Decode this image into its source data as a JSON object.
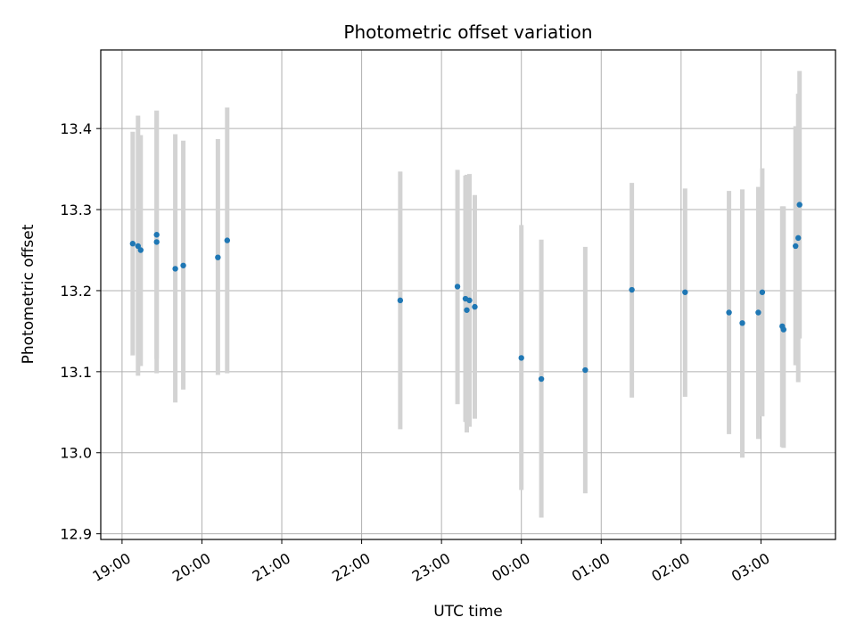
{
  "chart_data": {
    "type": "scatter",
    "title": "Photometric offset variation",
    "xlabel": "UTC time",
    "ylabel": "Photometric offset",
    "x_tick_labels": [
      "19:00",
      "20:00",
      "21:00",
      "22:00",
      "23:00",
      "00:00",
      "01:00",
      "02:00",
      "03:00"
    ],
    "y_ticks": [
      12.9,
      13.0,
      13.1,
      13.2,
      13.3,
      13.4
    ],
    "y_tick_labels": [
      "12.9",
      "13.0",
      "13.1",
      "13.2",
      "13.3",
      "13.4"
    ],
    "x_unit": "minutes after 19:00 UTC",
    "xlim": [
      -16,
      536
    ],
    "ylim": [
      12.893,
      13.497
    ],
    "grid": true,
    "colors": {
      "points": "#1f77b4",
      "errorbars": "#d3d3d3",
      "grid": "#b0b0b0"
    },
    "points": [
      {
        "x": 8,
        "y": 13.258,
        "ylow": 13.12,
        "yhigh": 13.396
      },
      {
        "x": 12,
        "y": 13.255,
        "ylow": 13.095,
        "yhigh": 13.416
      },
      {
        "x": 14,
        "y": 13.25,
        "ylow": 13.107,
        "yhigh": 13.392
      },
      {
        "x": 26,
        "y": 13.26,
        "ylow": 13.098,
        "yhigh": 13.422
      },
      {
        "x": 26,
        "y": 13.269,
        "ylow": 13.116,
        "yhigh": 13.422
      },
      {
        "x": 40,
        "y": 13.227,
        "ylow": 13.062,
        "yhigh": 13.393
      },
      {
        "x": 46,
        "y": 13.231,
        "ylow": 13.078,
        "yhigh": 13.385
      },
      {
        "x": 72,
        "y": 13.241,
        "ylow": 13.096,
        "yhigh": 13.387
      },
      {
        "x": 79,
        "y": 13.262,
        "ylow": 13.098,
        "yhigh": 13.426
      },
      {
        "x": 209,
        "y": 13.188,
        "ylow": 13.029,
        "yhigh": 13.347
      },
      {
        "x": 252,
        "y": 13.205,
        "ylow": 13.06,
        "yhigh": 13.349
      },
      {
        "x": 258,
        "y": 13.19,
        "ylow": 13.038,
        "yhigh": 13.342
      },
      {
        "x": 259,
        "y": 13.176,
        "ylow": 13.025,
        "yhigh": 13.343
      },
      {
        "x": 261,
        "y": 13.188,
        "ylow": 13.032,
        "yhigh": 13.344
      },
      {
        "x": 265,
        "y": 13.18,
        "ylow": 13.042,
        "yhigh": 13.318
      },
      {
        "x": 300,
        "y": 13.117,
        "ylow": 12.954,
        "yhigh": 13.281
      },
      {
        "x": 315,
        "y": 13.091,
        "ylow": 12.92,
        "yhigh": 13.263
      },
      {
        "x": 348,
        "y": 13.102,
        "ylow": 12.95,
        "yhigh": 13.254
      },
      {
        "x": 383,
        "y": 13.201,
        "ylow": 13.068,
        "yhigh": 13.333
      },
      {
        "x": 423,
        "y": 13.198,
        "ylow": 13.069,
        "yhigh": 13.326
      },
      {
        "x": 456,
        "y": 13.173,
        "ylow": 13.023,
        "yhigh": 13.323
      },
      {
        "x": 466,
        "y": 13.16,
        "ylow": 12.994,
        "yhigh": 13.325
      },
      {
        "x": 478,
        "y": 13.173,
        "ylow": 13.017,
        "yhigh": 13.328
      },
      {
        "x": 481,
        "y": 13.198,
        "ylow": 13.045,
        "yhigh": 13.351
      },
      {
        "x": 496,
        "y": 13.156,
        "ylow": 13.007,
        "yhigh": 13.304
      },
      {
        "x": 497,
        "y": 13.152,
        "ylow": 13.006,
        "yhigh": 13.304
      },
      {
        "x": 506,
        "y": 13.255,
        "ylow": 13.108,
        "yhigh": 13.403
      },
      {
        "x": 508,
        "y": 13.265,
        "ylow": 13.087,
        "yhigh": 13.443
      },
      {
        "x": 509,
        "y": 13.306,
        "ylow": 13.141,
        "yhigh": 13.471
      }
    ]
  }
}
